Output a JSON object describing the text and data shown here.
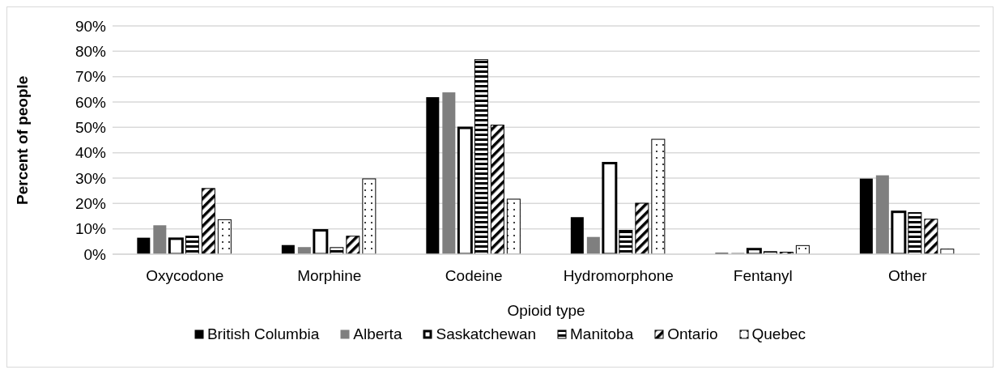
{
  "chart_data": {
    "type": "bar",
    "xlabel": "Opioid type",
    "ylabel": "Percent of people",
    "categories": [
      "Oxycodone",
      "Morphine",
      "Codeine",
      "Hydromorphone",
      "Fentanyl",
      "Other"
    ],
    "series": [
      {
        "name": "British Columbia",
        "color": "#000000",
        "values": [
          6.5,
          3.6,
          61.9,
          14.6,
          0.5,
          29.8
        ]
      },
      {
        "name": "Alberta",
        "color": "#7f7f7f",
        "values": [
          11.4,
          2.8,
          63.8,
          6.8,
          0.5,
          31.1
        ]
      },
      {
        "name": "Saskatchewan",
        "color": "#000000",
        "values": [
          6.1,
          9.4,
          49.8,
          35.9,
          2.0,
          16.7
        ]
      },
      {
        "name": "Manitoba",
        "color": "#000000",
        "values": [
          7.1,
          2.6,
          76.7,
          9.4,
          1.0,
          16.4
        ]
      },
      {
        "name": "Ontario",
        "color": "#000000",
        "values": [
          25.9,
          7.1,
          50.9,
          20.1,
          0.8,
          13.8
        ]
      },
      {
        "name": "Quebec",
        "color": "#000000",
        "values": [
          13.6,
          29.7,
          21.7,
          45.3,
          3.4,
          2.0
        ]
      }
    ],
    "ylim": [
      0,
      90
    ],
    "yticks": [
      {
        "value": 0,
        "label": "0%"
      },
      {
        "value": 10,
        "label": "10%"
      },
      {
        "value": 20,
        "label": "20%"
      },
      {
        "value": 30,
        "label": "30%"
      },
      {
        "value": 40,
        "label": "40%"
      },
      {
        "value": 50,
        "label": "50%"
      },
      {
        "value": 60,
        "label": "60%"
      },
      {
        "value": 70,
        "label": "70%"
      },
      {
        "value": 80,
        "label": "80%"
      },
      {
        "value": 90,
        "label": "90%"
      }
    ],
    "grid": "y",
    "legend": "bottom"
  }
}
